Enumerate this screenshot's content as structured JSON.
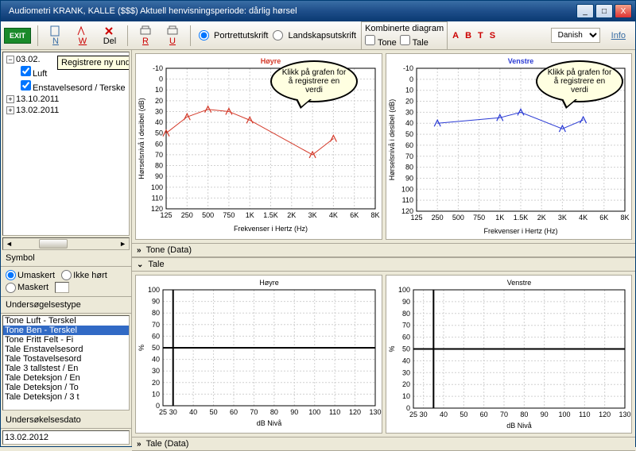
{
  "window": {
    "title": "Audiometri KRANK, KALLE ($$$)   Aktuell henvisningsperiode: dårlig hørsel",
    "minimize": "_",
    "maximize": "□",
    "close": "X"
  },
  "toolbar": {
    "exit": "EXIT",
    "labels": {
      "n": "N",
      "w": "W",
      "del": "Del",
      "r": "R",
      "u": "U"
    },
    "radio1": "Portrettutskrift",
    "radio2": "Landskapsutskrift",
    "combo_label": "Kombinerte diagram",
    "combo_tone": "Tone",
    "combo_tale": "Tale",
    "abts": [
      "A",
      "B",
      "T",
      "S"
    ],
    "lang": "Danish",
    "info": "Info",
    "colors": {
      "n": "#3a6ea5",
      "w": "#cc0000",
      "r": "#cc0000",
      "u": "#cc0000",
      "a": "#cc0000",
      "b": "#cc0000",
      "t": "#cc0000",
      "s": "#cc0000",
      "info": "#3a6ea5"
    }
  },
  "tree": {
    "tooltip": "Registrere ny undersøkelse tone",
    "nodes": [
      {
        "label": "03.02.",
        "expanded": true,
        "children": [
          {
            "label": "Luft",
            "checked": true
          },
          {
            "label": "Enstavelsesord / Terske",
            "checked": true
          }
        ]
      },
      {
        "label": "13.10.2011",
        "expanded": false
      },
      {
        "label": "13.02.2011",
        "expanded": false
      }
    ]
  },
  "symbol": {
    "title": "Symbol",
    "opt1": "Umaskert",
    "opt2": "Ikke hørt",
    "opt3": "Maskert"
  },
  "typelist": {
    "title": "Undersøgelsestype",
    "items": [
      "Tone Luft - Terskel",
      "Tone Ben - Terskel",
      "Tone Fritt Felt - Fi",
      "Tale Enstavelsesord",
      "Tale Tostavelsesord",
      "Tale 3 tallstest / En",
      "Tale Deteksjon / En",
      "Tale Deteksjon / To",
      "Tale Deteksjon / 3 t"
    ],
    "selected": 1
  },
  "date": {
    "label": "Undersøkelsesdato",
    "value": "13.02.2012"
  },
  "collapse": {
    "tone_data": "Tone (Data)",
    "tale": "Tale",
    "tale_data": "Tale (Data)"
  },
  "callout_text": "Klikk på grafen for å registrere en verdi",
  "charts": {
    "tone": {
      "type": "audiogram",
      "title_right": "Høyre",
      "title_left": "Venstre",
      "xlabel": "Frekvenser i Hertz (Hz)",
      "ylabel": "Hørselsnivå i desibel (dB)",
      "x_ticks": [
        "125",
        "250",
        "500",
        "750",
        "1K",
        "1.5K",
        "2K",
        "3K",
        "4K",
        "6K",
        "8K"
      ],
      "y_min": -10,
      "y_max": 120,
      "y_step": 10,
      "right_color": "#d43a2a",
      "left_color": "#2a3ad4",
      "grid_color": "#d0d0d0",
      "bg": "#ffffff",
      "axis_dash": "2,2",
      "right_data": [
        {
          "xi": 0,
          "y": 50
        },
        {
          "xi": 1,
          "y": 35
        },
        {
          "xi": 2,
          "y": 28
        },
        {
          "xi": 3,
          "y": 30
        },
        {
          "xi": 4,
          "y": 38
        },
        {
          "xi": 7,
          "y": 70
        },
        {
          "xi": 8,
          "y": 55
        }
      ],
      "left_data": [
        {
          "xi": 1,
          "y": 40
        },
        {
          "xi": 4,
          "y": 35
        },
        {
          "xi": 5,
          "y": 30
        },
        {
          "xi": 7,
          "y": 45
        },
        {
          "xi": 8,
          "y": 37
        }
      ]
    },
    "tale": {
      "type": "speech",
      "title_right": "Høyre",
      "title_left": "Venstre",
      "xlabel": "dB Nivå",
      "ylabel": "%",
      "x_ticks": [
        "25",
        "30",
        "40",
        "50",
        "60",
        "70",
        "80",
        "90",
        "100",
        "110",
        "120",
        "130"
      ],
      "y_min": 0,
      "y_max": 100,
      "y_step": 10,
      "grid_color": "#d0d0d0",
      "bg": "#ffffff",
      "hline_y": 50,
      "vline_x": 30,
      "vline_x2": 35
    }
  }
}
